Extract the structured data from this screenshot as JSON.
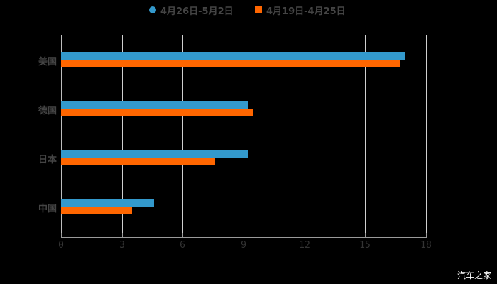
{
  "chart_data": {
    "type": "bar",
    "orientation": "horizontal",
    "title": "",
    "xlabel": "",
    "ylabel": "",
    "categories": [
      "美国",
      "德国",
      "日本",
      "中国"
    ],
    "series": [
      {
        "name": "4月26日-5月2日",
        "color": "#3399cc",
        "marker": "circle",
        "values": [
          17.0,
          9.2,
          9.2,
          4.6
        ]
      },
      {
        "name": "4月19日-4月25日",
        "color": "#ff6600",
        "marker": "square",
        "values": [
          16.7,
          9.5,
          7.6,
          3.5
        ]
      }
    ],
    "xlim": [
      0,
      18
    ],
    "xticks": [
      "0",
      "3",
      "6",
      "9",
      "12",
      "15",
      "18"
    ],
    "grid": true,
    "legend_position": "top"
  },
  "legend": {
    "items": [
      {
        "label": "4月26日-5月2日",
        "color": "#3399cc"
      },
      {
        "label": "4月19日-4月25日",
        "color": "#ff6600"
      }
    ]
  },
  "watermark": "汽车之家"
}
